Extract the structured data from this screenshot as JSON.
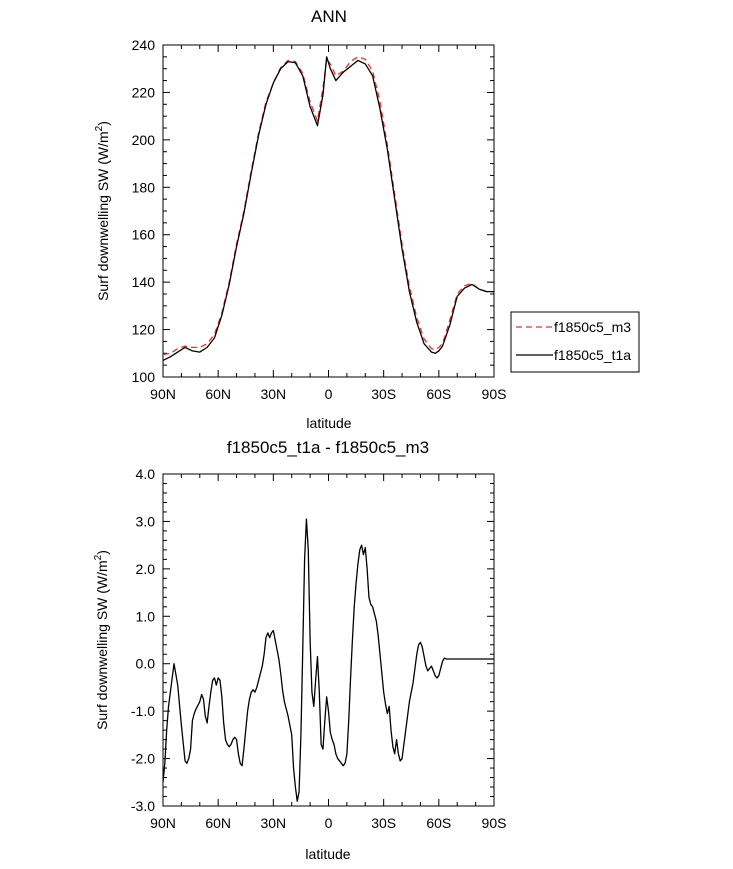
{
  "chart_data": [
    {
      "type": "line",
      "title": "ANN",
      "xlabel": "latitude",
      "ylabel": "Surf downwelling SW (W/m",
      "ylabel_sup": "2",
      "ylabel_close": ")",
      "xlim": [
        90,
        -90
      ],
      "ylim": [
        100,
        240
      ],
      "xticks": [
        90,
        60,
        30,
        0,
        -30,
        -60,
        -90
      ],
      "xtick_labels": [
        "90N",
        "60N",
        "30N",
        "0",
        "30S",
        "60S",
        "90S"
      ],
      "yticks": [
        100,
        120,
        140,
        160,
        180,
        200,
        220,
        240
      ],
      "ytick_labels": [
        "100",
        "120",
        "140",
        "160",
        "180",
        "200",
        "220",
        "240"
      ],
      "legend_position": "right",
      "series": [
        {
          "name": "f1850c5_m3",
          "color": "#e8302a",
          "dash": "dashed",
          "x": [
            90,
            86,
            82,
            78,
            74,
            70,
            66,
            62,
            58,
            54,
            50,
            46,
            42,
            38,
            34,
            30,
            26,
            22,
            18,
            14,
            10,
            6,
            3,
            1,
            -1,
            -4,
            -8,
            -12,
            -16,
            -20,
            -24,
            -28,
            -32,
            -36,
            -40,
            -44,
            -48,
            -52,
            -56,
            -58,
            -60,
            -62,
            -66,
            -70,
            -74,
            -78,
            -82,
            -86,
            -90
          ],
          "y": [
            109.5,
            110,
            112,
            113,
            112.5,
            112.5,
            114,
            118,
            127,
            140,
            156,
            170,
            187,
            203,
            216,
            224,
            230.5,
            233.5,
            233,
            228,
            216,
            208,
            222,
            234,
            232,
            227,
            229,
            233,
            235,
            234,
            229,
            216,
            198,
            177,
            156,
            138,
            125,
            116,
            112,
            111.5,
            112.5,
            114,
            124,
            135,
            138.5,
            139.5,
            137,
            136,
            136
          ]
        },
        {
          "name": "f1850c5_t1a",
          "color": "#000000",
          "dash": "solid",
          "x": [
            90,
            86,
            82,
            78,
            74,
            70,
            66,
            62,
            58,
            54,
            50,
            46,
            42,
            38,
            34,
            30,
            26,
            22,
            18,
            14,
            10,
            6,
            3,
            1,
            -1,
            -4,
            -8,
            -12,
            -16,
            -20,
            -24,
            -28,
            -32,
            -36,
            -40,
            -44,
            -48,
            -52,
            -56,
            -58,
            -60,
            -62,
            -66,
            -70,
            -74,
            -78,
            -82,
            -86,
            -90
          ],
          "y": [
            107,
            108.5,
            110.5,
            112.5,
            111,
            110.5,
            112.5,
            116.5,
            126,
            139,
            155,
            169,
            186,
            202,
            215,
            224,
            230,
            233,
            232.5,
            227,
            214,
            206,
            219,
            235,
            230,
            225,
            228.5,
            231,
            233.5,
            232,
            227,
            213,
            196,
            175,
            154,
            136,
            123,
            114,
            110.5,
            110,
            111,
            113,
            122,
            134,
            137.5,
            139,
            137,
            136,
            136
          ]
        }
      ]
    },
    {
      "type": "line",
      "title": "f1850c5_t1a - f1850c5_m3",
      "xlabel": "latitude",
      "ylabel": "Surf downwelling SW (W/m",
      "ylabel_sup": "2",
      "ylabel_close": ")",
      "xlim": [
        90,
        -90
      ],
      "ylim": [
        -3.0,
        4.0
      ],
      "xticks": [
        90,
        60,
        30,
        0,
        -30,
        -60,
        -90
      ],
      "xtick_labels": [
        "90N",
        "60N",
        "30N",
        "0",
        "30S",
        "60S",
        "90S"
      ],
      "yticks": [
        -3,
        -2,
        -1,
        0,
        1,
        2,
        3,
        4
      ],
      "ytick_labels": [
        "-3.0",
        "-2.0",
        "-1.0",
        "0.0",
        "1.0",
        "2.0",
        "3.0",
        "4.0"
      ],
      "series": [
        {
          "color": "#000000",
          "dash": "solid",
          "x": [
            90,
            89,
            88,
            87,
            86,
            85,
            84,
            82,
            80,
            78,
            77,
            76,
            75,
            74,
            73,
            72,
            70,
            69,
            68,
            67,
            66,
            65,
            64,
            63,
            62,
            61,
            60,
            59,
            58,
            57,
            56,
            55,
            54,
            53,
            52,
            51,
            50,
            49,
            48,
            47,
            46,
            45,
            44,
            43,
            42,
            41,
            40,
            39,
            38,
            37,
            36,
            35,
            34,
            33,
            32,
            31,
            30,
            29,
            28,
            27,
            26,
            25,
            24,
            23,
            22,
            21,
            20,
            19,
            18,
            17,
            16,
            15,
            14,
            13,
            12,
            11,
            10,
            9,
            8,
            7,
            6,
            5,
            4,
            3,
            2,
            1,
            0,
            -1,
            -2,
            -3,
            -4,
            -5,
            -6,
            -7,
            -8,
            -9,
            -10,
            -11,
            -12,
            -13,
            -14,
            -15,
            -16,
            -17,
            -18,
            -19,
            -20,
            -21,
            -22,
            -23,
            -24,
            -25,
            -26,
            -27,
            -28,
            -29,
            -30,
            -31,
            -32,
            -33,
            -34,
            -35,
            -36,
            -37,
            -38,
            -39,
            -40,
            -41,
            -42,
            -43,
            -44,
            -45,
            -46,
            -47,
            -48,
            -49,
            -50,
            -51,
            -52,
            -53,
            -54,
            -55,
            -56,
            -57,
            -58,
            -59,
            -60,
            -61,
            -62,
            -63,
            -64,
            -65,
            -66,
            -67,
            -68,
            -69,
            -70,
            -71,
            -72,
            -73,
            -74,
            -75,
            -76,
            -77,
            -78,
            -79,
            -80,
            -81,
            -82,
            -83,
            -84,
            -85,
            -86,
            -87,
            -88,
            -89,
            -90
          ],
          "y": [
            -2.5,
            -2.1,
            -1.4,
            -0.9,
            -0.6,
            -0.3,
            0.0,
            -0.45,
            -1.3,
            -2.05,
            -2.1,
            -2.0,
            -1.8,
            -1.2,
            -1.05,
            -0.95,
            -0.8,
            -0.65,
            -0.75,
            -1.1,
            -1.25,
            -0.9,
            -0.6,
            -0.35,
            -0.3,
            -0.45,
            -0.3,
            -0.35,
            -0.7,
            -1.25,
            -1.6,
            -1.7,
            -1.75,
            -1.7,
            -1.6,
            -1.55,
            -1.6,
            -1.9,
            -2.1,
            -2.15,
            -1.8,
            -1.4,
            -1.0,
            -0.75,
            -0.6,
            -0.55,
            -0.6,
            -0.5,
            -0.35,
            -0.2,
            -0.05,
            0.2,
            0.55,
            0.65,
            0.55,
            0.65,
            0.7,
            0.5,
            0.3,
            0.1,
            -0.2,
            -0.55,
            -0.8,
            -0.95,
            -1.1,
            -1.3,
            -1.5,
            -2.2,
            -2.6,
            -2.9,
            -2.7,
            -1.5,
            0.3,
            2.2,
            3.05,
            2.4,
            0.5,
            -0.6,
            -0.9,
            -0.35,
            0.15,
            -0.6,
            -1.7,
            -1.8,
            -1.2,
            -0.7,
            -1.0,
            -1.45,
            -1.6,
            -1.7,
            -1.9,
            -2.0,
            -2.05,
            -2.1,
            -2.15,
            -2.1,
            -1.9,
            -1.2,
            -0.3,
            0.5,
            1.2,
            1.7,
            2.1,
            2.4,
            2.5,
            2.3,
            2.45,
            2.0,
            1.4,
            1.25,
            1.2,
            1.05,
            0.9,
            0.6,
            0.2,
            -0.2,
            -0.6,
            -0.85,
            -1.05,
            -0.9,
            -1.4,
            -1.75,
            -1.9,
            -1.6,
            -1.9,
            -2.05,
            -2.0,
            -1.7,
            -1.4,
            -1.1,
            -0.8,
            -0.6,
            -0.4,
            -0.1,
            0.2,
            0.4,
            0.45,
            0.35,
            0.15,
            -0.05,
            -0.15,
            -0.1,
            -0.05,
            -0.15,
            -0.25,
            -0.3,
            -0.25,
            -0.1,
            0.05,
            0.12,
            0.1,
            0.1,
            0.1,
            0.1,
            0.1,
            0.1,
            0.1,
            0.1,
            0.1,
            0.1,
            0.1,
            0.1,
            0.1,
            0.1,
            0.1,
            0.1,
            0.1,
            0.1,
            0.1,
            0.1,
            0.1,
            0.1,
            0.1,
            0.1,
            0.1,
            0.1,
            0.1
          ]
        }
      ]
    }
  ]
}
